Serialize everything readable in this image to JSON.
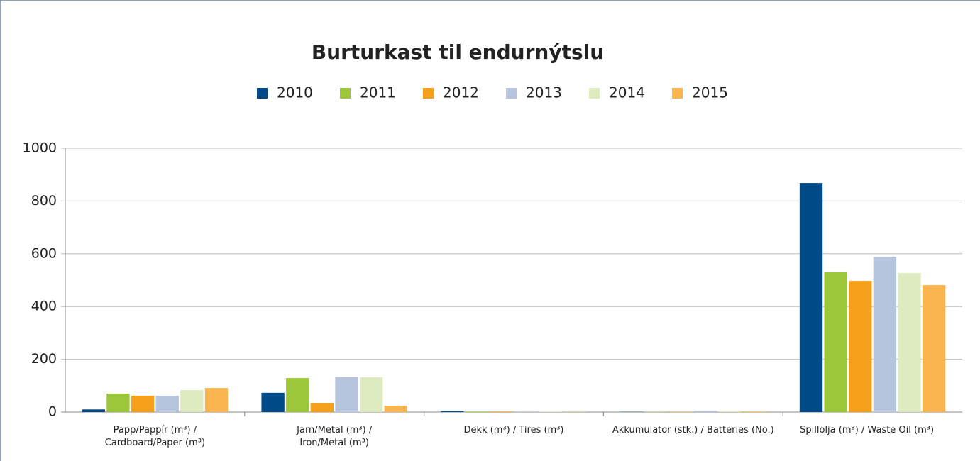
{
  "chart_data": {
    "type": "bar",
    "title": "Burturkast til endurnýtslu",
    "categories": [
      "Papp/Pappír (m³) / Cardboard/Paper (m³)",
      "Jarn/Metal (m³) / Iron/Metal (m³)",
      "Dekk (m³) / Tires (m³)",
      "Akkumulator (stk.) / Batteries (No.)",
      "Spillolja (m³) / Waste Oil (m³)"
    ],
    "series": [
      {
        "name": "2010",
        "color": "#004a87",
        "values": [
          10,
          73,
          4,
          1,
          868
        ]
      },
      {
        "name": "2011",
        "color": "#9dc73b",
        "values": [
          70,
          129,
          2,
          1,
          530
        ]
      },
      {
        "name": "2012",
        "color": "#f5a01a",
        "values": [
          62,
          35,
          2,
          1,
          497
        ]
      },
      {
        "name": "2013",
        "color": "#b7c5de",
        "values": [
          62,
          132,
          2,
          5,
          589
        ]
      },
      {
        "name": "2014",
        "color": "#deebc1",
        "values": [
          83,
          132,
          1,
          3,
          527
        ]
      },
      {
        "name": "2015",
        "color": "#fbb550",
        "values": [
          91,
          24,
          1,
          2,
          481
        ]
      }
    ],
    "ylim": [
      0,
      1000
    ],
    "yticks": [
      0,
      200,
      400,
      600,
      800,
      1000
    ],
    "grid": true,
    "legend": "top"
  }
}
